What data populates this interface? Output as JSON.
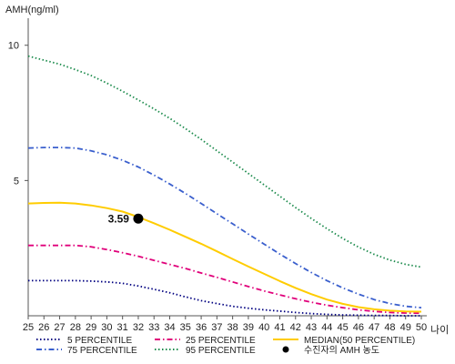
{
  "chart_data": {
    "type": "line",
    "ylabel": "AMH(ng/ml)",
    "xlabel": "나이",
    "xlim": [
      25,
      50
    ],
    "ylim": [
      0,
      11
    ],
    "x_ticks": [
      25,
      26,
      27,
      28,
      29,
      30,
      31,
      32,
      33,
      34,
      35,
      36,
      37,
      38,
      39,
      40,
      41,
      42,
      43,
      44,
      45,
      46,
      47,
      48,
      49,
      50
    ],
    "y_ticks": [
      5,
      10
    ],
    "grid": false,
    "x": [
      25,
      26,
      27,
      28,
      29,
      30,
      31,
      32,
      33,
      34,
      35,
      36,
      37,
      38,
      39,
      40,
      41,
      42,
      43,
      44,
      45,
      46,
      47,
      48,
      49,
      50
    ],
    "series": [
      {
        "name": "5 PERCENTILE",
        "color": "#000080",
        "dash": "dotted",
        "values": [
          1.3,
          1.3,
          1.3,
          1.3,
          1.28,
          1.25,
          1.2,
          1.1,
          0.98,
          0.85,
          0.7,
          0.56,
          0.45,
          0.35,
          0.28,
          0.22,
          0.17,
          0.12,
          0.08,
          0.05,
          0.03,
          0.02,
          0.01,
          0.01,
          0.0,
          0.0
        ]
      },
      {
        "name": "25 PERCENTILE",
        "color": "#e0007a",
        "dash": "dashdot",
        "values": [
          2.6,
          2.6,
          2.6,
          2.6,
          2.55,
          2.45,
          2.33,
          2.2,
          2.05,
          1.9,
          1.75,
          1.58,
          1.42,
          1.25,
          1.08,
          0.92,
          0.77,
          0.63,
          0.5,
          0.39,
          0.3,
          0.22,
          0.16,
          0.12,
          0.1,
          0.09
        ]
      },
      {
        "name": "MEDIAN(50 PERCENTILE)",
        "color": "#ffcc00",
        "dash": "solid",
        "values": [
          4.15,
          4.17,
          4.18,
          4.15,
          4.08,
          3.98,
          3.85,
          3.65,
          3.42,
          3.18,
          2.92,
          2.66,
          2.38,
          2.1,
          1.82,
          1.55,
          1.28,
          1.03,
          0.8,
          0.6,
          0.44,
          0.32,
          0.24,
          0.19,
          0.16,
          0.15
        ]
      },
      {
        "name": "75 PERCENTILE",
        "color": "#3a5fcd",
        "dash": "dashdot",
        "values": [
          6.2,
          6.22,
          6.22,
          6.2,
          6.1,
          5.95,
          5.75,
          5.5,
          5.2,
          4.87,
          4.52,
          4.15,
          3.77,
          3.4,
          3.02,
          2.65,
          2.28,
          1.93,
          1.6,
          1.3,
          1.03,
          0.8,
          0.6,
          0.45,
          0.35,
          0.3
        ]
      },
      {
        "name": "95 PERCENTILE",
        "color": "#1e8c4e",
        "dash": "dotted",
        "values": [
          9.6,
          9.45,
          9.3,
          9.1,
          8.88,
          8.6,
          8.3,
          7.98,
          7.65,
          7.3,
          6.92,
          6.52,
          6.1,
          5.68,
          5.26,
          4.84,
          4.42,
          4.0,
          3.6,
          3.22,
          2.86,
          2.54,
          2.27,
          2.06,
          1.9,
          1.8
        ]
      }
    ],
    "marker": {
      "name": "수진자의 AMH 농도",
      "x": 32,
      "y": 3.59,
      "label": "3.59",
      "color": "#000000"
    },
    "legend": {
      "placement": "bottom",
      "entries": [
        {
          "label": "5 PERCENTILE",
          "color": "#000080",
          "dash": "dotted"
        },
        {
          "label": "25 PERCENTILE",
          "color": "#e0007a",
          "dash": "dashdot"
        },
        {
          "label": "MEDIAN(50 PERCENTILE)",
          "color": "#ffcc00",
          "dash": "solid"
        },
        {
          "label": "75 PERCENTILE",
          "color": "#3a5fcd",
          "dash": "dashdot"
        },
        {
          "label": "95 PERCENTILE",
          "color": "#1e8c4e",
          "dash": "dotted"
        },
        {
          "label": "수진자의 AMH 농도",
          "color": "#000000",
          "dash": "marker"
        }
      ]
    }
  }
}
